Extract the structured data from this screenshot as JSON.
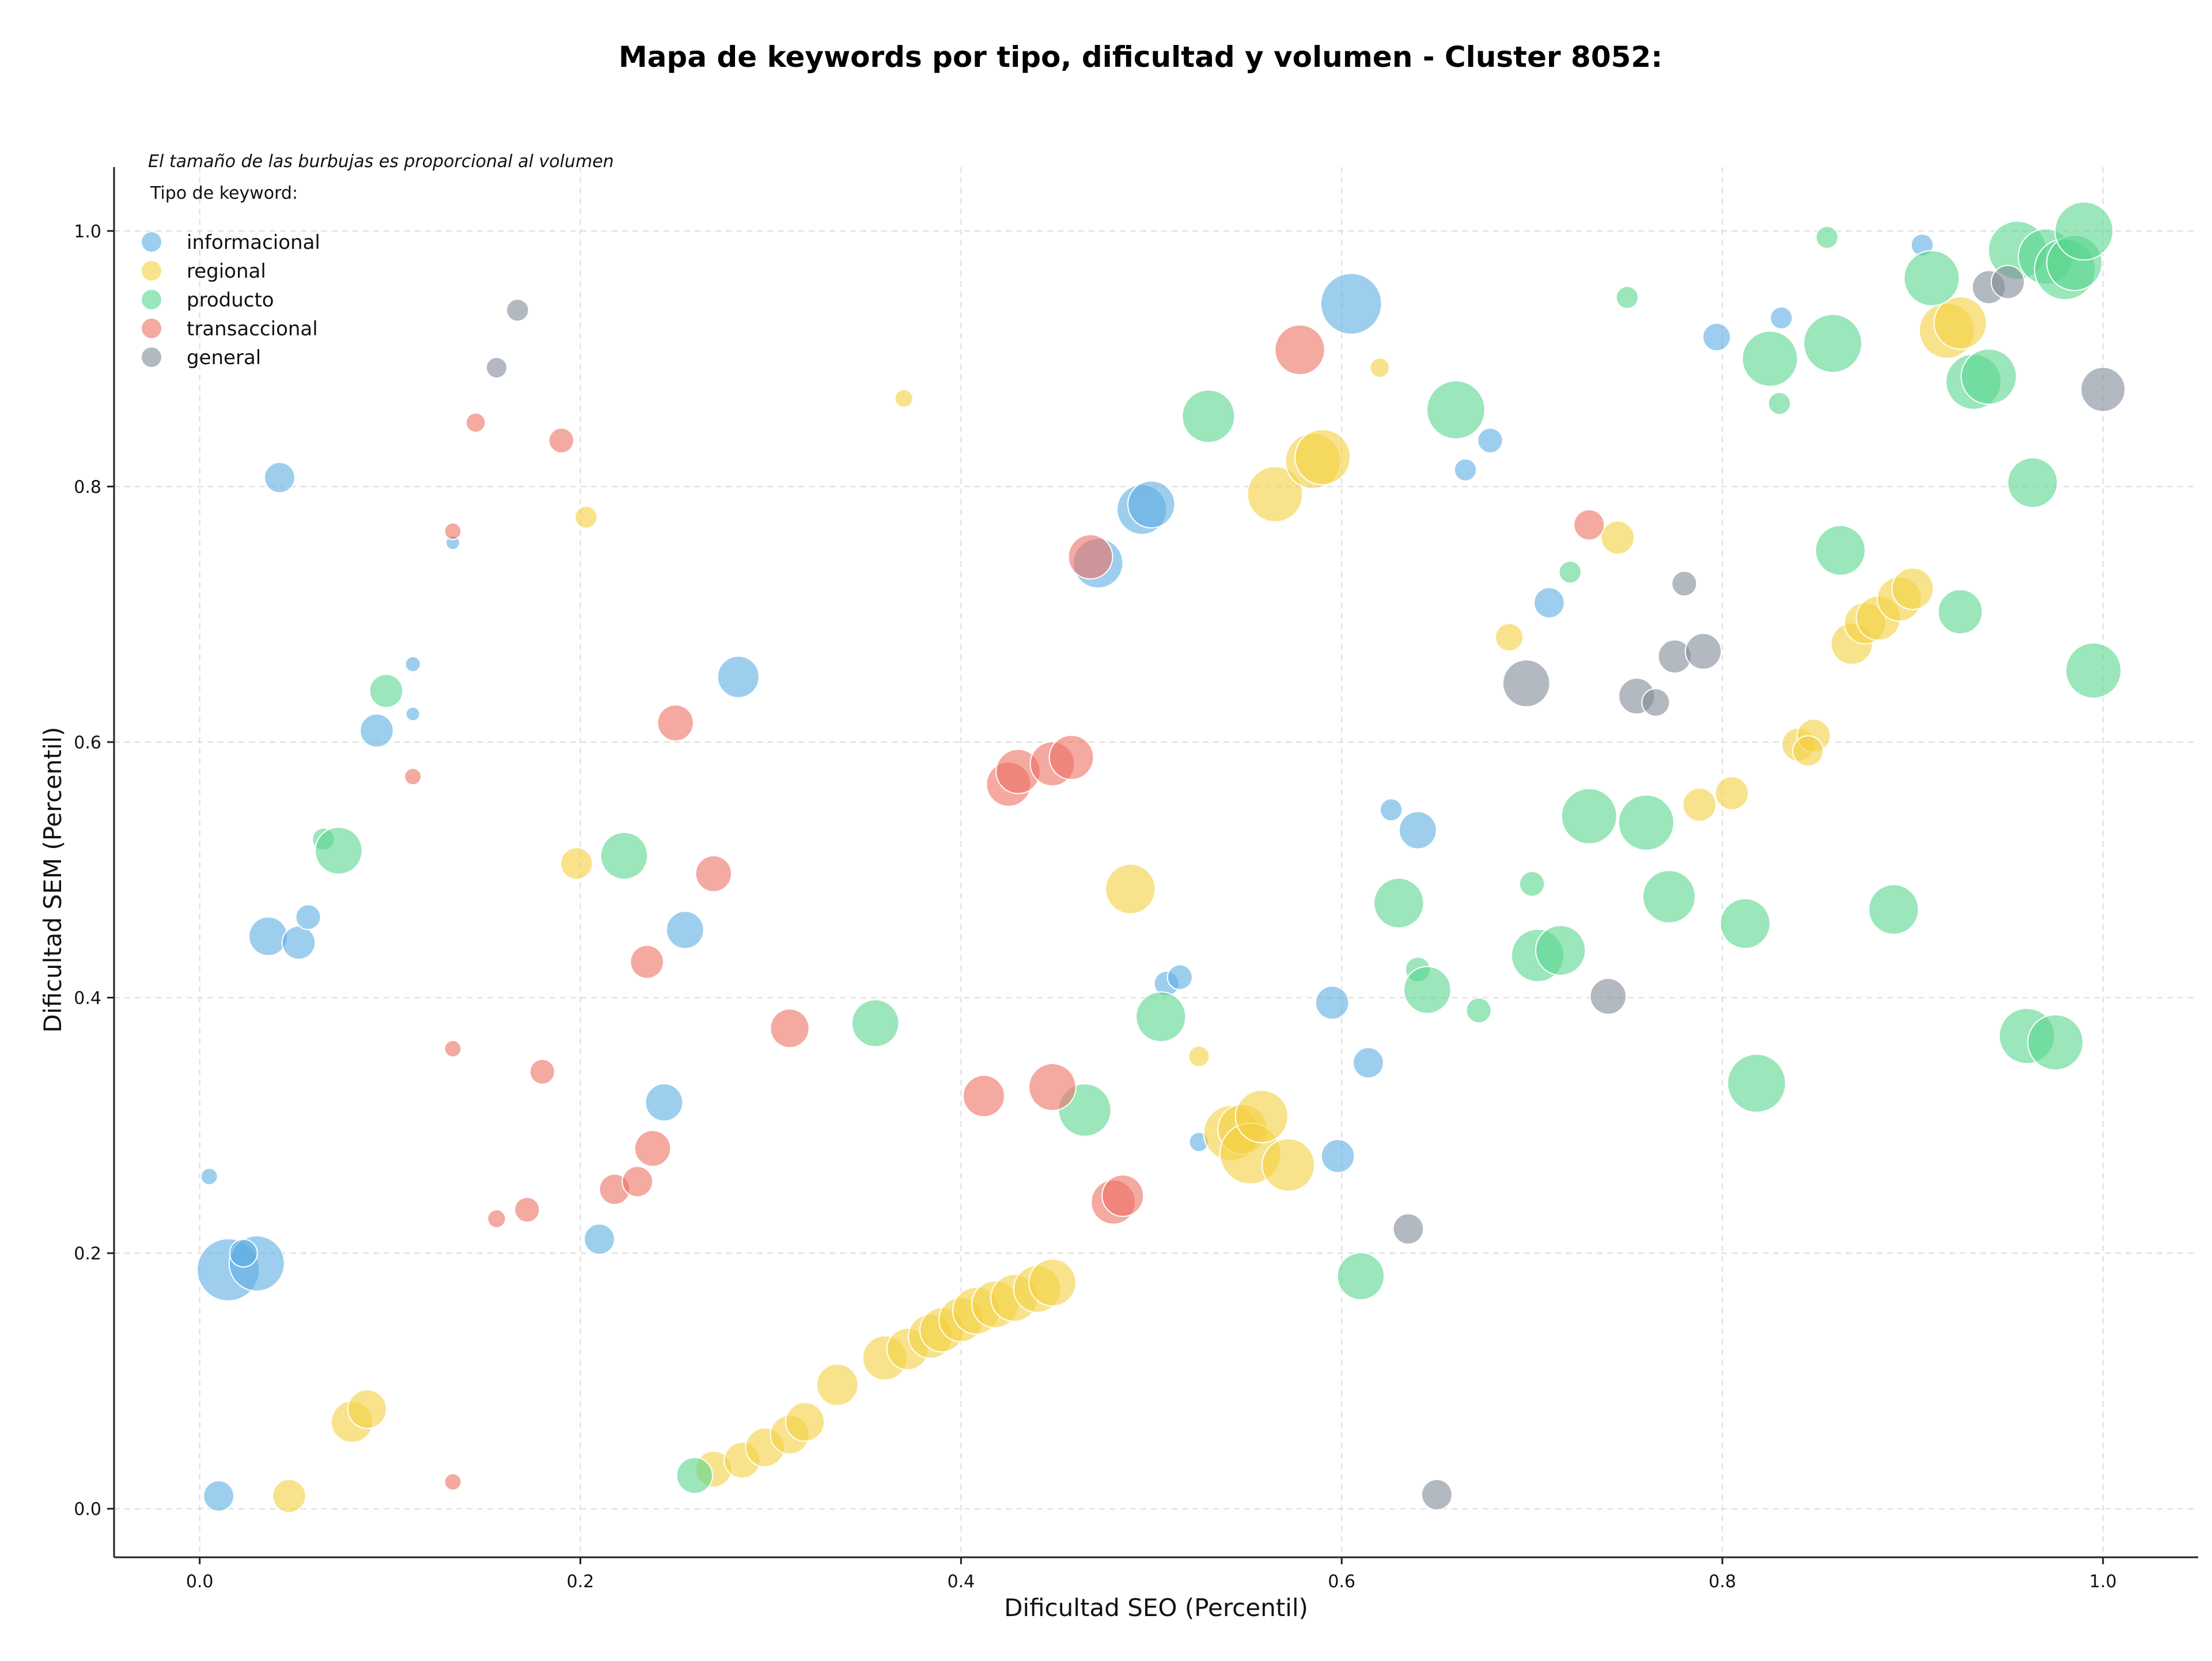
{
  "chart_data": {
    "type": "scatter",
    "title": "Mapa de keywords por tipo, dificultad y volumen - Cluster 8052:",
    "xlabel": "Dificultad SEO (Percentil)",
    "ylabel": "Dificultad SEM (Percentil)",
    "note": "El tamaño de las burbujas es proporcional al volumen",
    "legend_title": "Tipo de keyword:",
    "legend_position": "top-left",
    "xlim": [
      -0.045,
      1.05
    ],
    "ylim": [
      -0.038,
      1.05
    ],
    "x_ticks": [
      "0.0",
      "0.2",
      "0.4",
      "0.6",
      "0.8",
      "1.0"
    ],
    "y_ticks": [
      "0.0",
      "0.2",
      "0.4",
      "0.6",
      "0.8",
      "1.0"
    ],
    "grid": true,
    "series": [
      {
        "name": "informacional",
        "color": "#5dade2",
        "points": [
          {
            "x": 0.005,
            "y": 0.26,
            "s": 12
          },
          {
            "x": 0.015,
            "y": 0.187,
            "s": 45
          },
          {
            "x": 0.03,
            "y": 0.192,
            "s": 40
          },
          {
            "x": 0.023,
            "y": 0.2,
            "s": 20
          },
          {
            "x": 0.01,
            "y": 0.01,
            "s": 22
          },
          {
            "x": 0.042,
            "y": 0.807,
            "s": 22
          },
          {
            "x": 0.036,
            "y": 0.448,
            "s": 28
          },
          {
            "x": 0.052,
            "y": 0.443,
            "s": 24
          },
          {
            "x": 0.057,
            "y": 0.463,
            "s": 18
          },
          {
            "x": 0.093,
            "y": 0.609,
            "s": 24
          },
          {
            "x": 0.112,
            "y": 0.661,
            "s": 11
          },
          {
            "x": 0.112,
            "y": 0.622,
            "s": 10
          },
          {
            "x": 0.133,
            "y": 0.756,
            "s": 10
          },
          {
            "x": 0.21,
            "y": 0.211,
            "s": 22
          },
          {
            "x": 0.244,
            "y": 0.318,
            "s": 27
          },
          {
            "x": 0.255,
            "y": 0.453,
            "s": 27
          },
          {
            "x": 0.283,
            "y": 0.651,
            "s": 30
          },
          {
            "x": 0.472,
            "y": 0.74,
            "s": 36
          },
          {
            "x": 0.495,
            "y": 0.782,
            "s": 36
          },
          {
            "x": 0.5,
            "y": 0.786,
            "s": 34
          },
          {
            "x": 0.508,
            "y": 0.411,
            "s": 18
          },
          {
            "x": 0.515,
            "y": 0.416,
            "s": 18
          },
          {
            "x": 0.525,
            "y": 0.287,
            "s": 14
          },
          {
            "x": 0.595,
            "y": 0.396,
            "s": 24
          },
          {
            "x": 0.598,
            "y": 0.276,
            "s": 24
          },
          {
            "x": 0.605,
            "y": 0.943,
            "s": 44
          },
          {
            "x": 0.614,
            "y": 0.349,
            "s": 22
          },
          {
            "x": 0.626,
            "y": 0.547,
            "s": 16
          },
          {
            "x": 0.64,
            "y": 0.531,
            "s": 27
          },
          {
            "x": 0.665,
            "y": 0.813,
            "s": 16
          },
          {
            "x": 0.678,
            "y": 0.836,
            "s": 18
          },
          {
            "x": 0.709,
            "y": 0.709,
            "s": 22
          },
          {
            "x": 0.797,
            "y": 0.917,
            "s": 20
          },
          {
            "x": 0.831,
            "y": 0.932,
            "s": 16
          },
          {
            "x": 0.905,
            "y": 0.989,
            "s": 16
          }
        ]
      },
      {
        "name": "regional",
        "color": "#f4d03f",
        "points": [
          {
            "x": 0.047,
            "y": 0.01,
            "s": 24
          },
          {
            "x": 0.08,
            "y": 0.068,
            "s": 30
          },
          {
            "x": 0.088,
            "y": 0.078,
            "s": 28
          },
          {
            "x": 0.198,
            "y": 0.505,
            "s": 23
          },
          {
            "x": 0.203,
            "y": 0.776,
            "s": 16
          },
          {
            "x": 0.37,
            "y": 0.869,
            "s": 13
          },
          {
            "x": 0.27,
            "y": 0.031,
            "s": 26
          },
          {
            "x": 0.285,
            "y": 0.038,
            "s": 26
          },
          {
            "x": 0.297,
            "y": 0.048,
            "s": 28
          },
          {
            "x": 0.31,
            "y": 0.058,
            "s": 28
          },
          {
            "x": 0.318,
            "y": 0.068,
            "s": 28
          },
          {
            "x": 0.335,
            "y": 0.097,
            "s": 30
          },
          {
            "x": 0.36,
            "y": 0.118,
            "s": 32
          },
          {
            "x": 0.372,
            "y": 0.125,
            "s": 30
          },
          {
            "x": 0.384,
            "y": 0.135,
            "s": 32
          },
          {
            "x": 0.39,
            "y": 0.14,
            "s": 32
          },
          {
            "x": 0.4,
            "y": 0.148,
            "s": 32
          },
          {
            "x": 0.408,
            "y": 0.155,
            "s": 34
          },
          {
            "x": 0.418,
            "y": 0.16,
            "s": 34
          },
          {
            "x": 0.428,
            "y": 0.165,
            "s": 34
          },
          {
            "x": 0.44,
            "y": 0.172,
            "s": 34
          },
          {
            "x": 0.448,
            "y": 0.177,
            "s": 34
          },
          {
            "x": 0.489,
            "y": 0.485,
            "s": 36
          },
          {
            "x": 0.525,
            "y": 0.354,
            "s": 15
          },
          {
            "x": 0.542,
            "y": 0.294,
            "s": 40
          },
          {
            "x": 0.548,
            "y": 0.297,
            "s": 36
          },
          {
            "x": 0.552,
            "y": 0.278,
            "s": 44
          },
          {
            "x": 0.558,
            "y": 0.307,
            "s": 38
          },
          {
            "x": 0.572,
            "y": 0.269,
            "s": 38
          },
          {
            "x": 0.565,
            "y": 0.794,
            "s": 40
          },
          {
            "x": 0.585,
            "y": 0.82,
            "s": 40
          },
          {
            "x": 0.59,
            "y": 0.823,
            "s": 40
          },
          {
            "x": 0.62,
            "y": 0.893,
            "s": 14
          },
          {
            "x": 0.688,
            "y": 0.682,
            "s": 20
          },
          {
            "x": 0.745,
            "y": 0.76,
            "s": 24
          },
          {
            "x": 0.788,
            "y": 0.551,
            "s": 24
          },
          {
            "x": 0.805,
            "y": 0.56,
            "s": 24
          },
          {
            "x": 0.84,
            "y": 0.598,
            "s": 24
          },
          {
            "x": 0.848,
            "y": 0.605,
            "s": 24
          },
          {
            "x": 0.845,
            "y": 0.593,
            "s": 22
          },
          {
            "x": 0.868,
            "y": 0.677,
            "s": 30
          },
          {
            "x": 0.875,
            "y": 0.693,
            "s": 30
          },
          {
            "x": 0.882,
            "y": 0.697,
            "s": 32
          },
          {
            "x": 0.893,
            "y": 0.712,
            "s": 32
          },
          {
            "x": 0.9,
            "y": 0.72,
            "s": 30
          },
          {
            "x": 0.918,
            "y": 0.922,
            "s": 40
          },
          {
            "x": 0.925,
            "y": 0.928,
            "s": 38
          }
        ]
      },
      {
        "name": "producto",
        "color": "#58d68d",
        "points": [
          {
            "x": 0.065,
            "y": 0.524,
            "s": 16
          },
          {
            "x": 0.073,
            "y": 0.515,
            "s": 34
          },
          {
            "x": 0.098,
            "y": 0.64,
            "s": 24
          },
          {
            "x": 0.223,
            "y": 0.511,
            "s": 34
          },
          {
            "x": 0.26,
            "y": 0.026,
            "s": 26
          },
          {
            "x": 0.355,
            "y": 0.38,
            "s": 34
          },
          {
            "x": 0.465,
            "y": 0.312,
            "s": 38
          },
          {
            "x": 0.505,
            "y": 0.385,
            "s": 36
          },
          {
            "x": 0.53,
            "y": 0.855,
            "s": 38
          },
          {
            "x": 0.61,
            "y": 0.182,
            "s": 34
          },
          {
            "x": 0.63,
            "y": 0.474,
            "s": 36
          },
          {
            "x": 0.64,
            "y": 0.422,
            "s": 18
          },
          {
            "x": 0.645,
            "y": 0.406,
            "s": 34
          },
          {
            "x": 0.66,
            "y": 0.86,
            "s": 42
          },
          {
            "x": 0.672,
            "y": 0.39,
            "s": 18
          },
          {
            "x": 0.7,
            "y": 0.489,
            "s": 18
          },
          {
            "x": 0.703,
            "y": 0.433,
            "s": 38
          },
          {
            "x": 0.715,
            "y": 0.437,
            "s": 36
          },
          {
            "x": 0.72,
            "y": 0.733,
            "s": 16
          },
          {
            "x": 0.73,
            "y": 0.542,
            "s": 40
          },
          {
            "x": 0.75,
            "y": 0.948,
            "s": 16
          },
          {
            "x": 0.76,
            "y": 0.537,
            "s": 40
          },
          {
            "x": 0.772,
            "y": 0.479,
            "s": 38
          },
          {
            "x": 0.812,
            "y": 0.458,
            "s": 36
          },
          {
            "x": 0.818,
            "y": 0.333,
            "s": 42
          },
          {
            "x": 0.825,
            "y": 0.9,
            "s": 40
          },
          {
            "x": 0.83,
            "y": 0.865,
            "s": 16
          },
          {
            "x": 0.855,
            "y": 0.995,
            "s": 16
          },
          {
            "x": 0.858,
            "y": 0.912,
            "s": 42
          },
          {
            "x": 0.862,
            "y": 0.75,
            "s": 36
          },
          {
            "x": 0.89,
            "y": 0.469,
            "s": 36
          },
          {
            "x": 0.91,
            "y": 0.963,
            "s": 40
          },
          {
            "x": 0.925,
            "y": 0.702,
            "s": 32
          },
          {
            "x": 0.932,
            "y": 0.882,
            "s": 40
          },
          {
            "x": 0.94,
            "y": 0.886,
            "s": 40
          },
          {
            "x": 0.955,
            "y": 0.985,
            "s": 42
          },
          {
            "x": 0.96,
            "y": 0.37,
            "s": 40
          },
          {
            "x": 0.963,
            "y": 0.803,
            "s": 36
          },
          {
            "x": 0.97,
            "y": 0.98,
            "s": 40
          },
          {
            "x": 0.975,
            "y": 0.365,
            "s": 40
          },
          {
            "x": 0.98,
            "y": 0.97,
            "s": 44
          },
          {
            "x": 0.985,
            "y": 0.975,
            "s": 40
          },
          {
            "x": 0.99,
            "y": 1.0,
            "s": 42
          },
          {
            "x": 0.995,
            "y": 0.656,
            "s": 40
          }
        ]
      },
      {
        "name": "transaccional",
        "color": "#ec7063",
        "points": [
          {
            "x": 0.145,
            "y": 0.85,
            "s": 14
          },
          {
            "x": 0.133,
            "y": 0.765,
            "s": 12
          },
          {
            "x": 0.112,
            "y": 0.573,
            "s": 12
          },
          {
            "x": 0.133,
            "y": 0.36,
            "s": 12
          },
          {
            "x": 0.133,
            "y": 0.021,
            "s": 12
          },
          {
            "x": 0.156,
            "y": 0.227,
            "s": 13
          },
          {
            "x": 0.172,
            "y": 0.234,
            "s": 18
          },
          {
            "x": 0.18,
            "y": 0.342,
            "s": 18
          },
          {
            "x": 0.19,
            "y": 0.836,
            "s": 18
          },
          {
            "x": 0.218,
            "y": 0.25,
            "s": 22
          },
          {
            "x": 0.23,
            "y": 0.256,
            "s": 22
          },
          {
            "x": 0.235,
            "y": 0.428,
            "s": 24
          },
          {
            "x": 0.238,
            "y": 0.282,
            "s": 26
          },
          {
            "x": 0.25,
            "y": 0.615,
            "s": 26
          },
          {
            "x": 0.27,
            "y": 0.497,
            "s": 26
          },
          {
            "x": 0.31,
            "y": 0.376,
            "s": 28
          },
          {
            "x": 0.412,
            "y": 0.323,
            "s": 30
          },
          {
            "x": 0.425,
            "y": 0.567,
            "s": 32
          },
          {
            "x": 0.43,
            "y": 0.577,
            "s": 32
          },
          {
            "x": 0.448,
            "y": 0.33,
            "s": 34
          },
          {
            "x": 0.448,
            "y": 0.583,
            "s": 32
          },
          {
            "x": 0.458,
            "y": 0.588,
            "s": 32
          },
          {
            "x": 0.468,
            "y": 0.745,
            "s": 32
          },
          {
            "x": 0.48,
            "y": 0.24,
            "s": 32
          },
          {
            "x": 0.485,
            "y": 0.245,
            "s": 30
          },
          {
            "x": 0.578,
            "y": 0.907,
            "s": 36
          },
          {
            "x": 0.73,
            "y": 0.77,
            "s": 22
          }
        ]
      },
      {
        "name": "general",
        "color": "#808b96",
        "points": [
          {
            "x": 0.167,
            "y": 0.938,
            "s": 16
          },
          {
            "x": 0.156,
            "y": 0.893,
            "s": 15
          },
          {
            "x": 0.635,
            "y": 0.219,
            "s": 22
          },
          {
            "x": 0.65,
            "y": 0.011,
            "s": 22
          },
          {
            "x": 0.697,
            "y": 0.646,
            "s": 34
          },
          {
            "x": 0.74,
            "y": 0.401,
            "s": 26
          },
          {
            "x": 0.755,
            "y": 0.636,
            "s": 26
          },
          {
            "x": 0.765,
            "y": 0.631,
            "s": 20
          },
          {
            "x": 0.775,
            "y": 0.667,
            "s": 24
          },
          {
            "x": 0.78,
            "y": 0.724,
            "s": 18
          },
          {
            "x": 0.79,
            "y": 0.671,
            "s": 26
          },
          {
            "x": 0.94,
            "y": 0.956,
            "s": 24
          },
          {
            "x": 0.95,
            "y": 0.96,
            "s": 24
          },
          {
            "x": 1.0,
            "y": 0.876,
            "s": 32
          }
        ]
      }
    ]
  }
}
